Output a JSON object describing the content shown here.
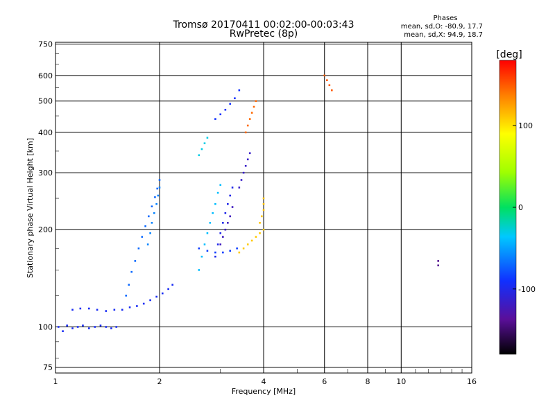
{
  "chart_data": {
    "type": "scatter",
    "title": "Tromsø 20170411 00:02:00-00:03:43",
    "subtitle": "RwPretec (8p)",
    "xlabel": "Frequency [MHz]",
    "ylabel": "Stationary phase Virtual Height [km]",
    "x_scale": "log",
    "y_scale": "log",
    "xlim": [
      1,
      16
    ],
    "ylim": [
      72,
      760
    ],
    "xticks": [
      1,
      2,
      4,
      6,
      8,
      10,
      16
    ],
    "xtick_labels": [
      "1",
      "2",
      "4",
      "6",
      "8",
      "10",
      "16"
    ],
    "yticks": [
      75,
      100,
      200,
      300,
      400,
      500,
      600,
      750
    ],
    "ytick_labels": [
      "75",
      "100",
      "200",
      "300",
      "400",
      "500",
      "600",
      "750"
    ],
    "grid": true,
    "colorbar": {
      "label": "[deg]",
      "range": [
        -180,
        180
      ],
      "ticks": [
        100,
        0,
        -100
      ],
      "tick_labels": [
        "100",
        "0",
        "-100"
      ],
      "colormap": "rainbow"
    },
    "phase_info": {
      "heading": "Phases",
      "line_o": "mean, sd,O: -80.9, 17.7",
      "line_x": "mean, sd,X:  94.9, 18.7"
    },
    "traces": [
      {
        "points": [
          [
            1.02,
            100
          ],
          [
            1.05,
            97
          ],
          [
            1.08,
            101
          ],
          [
            1.12,
            99
          ],
          [
            1.16,
            100
          ],
          [
            1.2,
            101
          ],
          [
            1.25,
            99
          ],
          [
            1.3,
            100
          ],
          [
            1.35,
            101
          ],
          [
            1.4,
            100
          ],
          [
            1.45,
            99
          ],
          [
            1.5,
            100
          ]
        ],
        "phase": -95
      },
      {
        "points": [
          [
            1.12,
            113
          ],
          [
            1.18,
            114
          ],
          [
            1.25,
            114
          ],
          [
            1.32,
            113
          ],
          [
            1.4,
            112
          ],
          [
            1.48,
            113
          ],
          [
            1.56,
            113
          ],
          [
            1.64,
            115
          ],
          [
            1.72,
            116
          ],
          [
            1.8,
            118
          ],
          [
            1.88,
            121
          ],
          [
            1.96,
            124
          ],
          [
            2.04,
            127
          ],
          [
            2.12,
            131
          ],
          [
            2.18,
            135
          ]
        ],
        "phase": -95
      },
      {
        "points": [
          [
            1.6,
            125
          ],
          [
            1.63,
            135
          ],
          [
            1.66,
            148
          ],
          [
            1.7,
            160
          ],
          [
            1.74,
            175
          ],
          [
            1.78,
            190
          ],
          [
            1.82,
            205
          ],
          [
            1.86,
            220
          ],
          [
            1.9,
            236
          ],
          [
            1.94,
            252
          ],
          [
            1.97,
            268
          ],
          [
            2.0,
            285
          ]
        ],
        "phase": -70
      },
      {
        "points": [
          [
            1.85,
            180
          ],
          [
            1.88,
            195
          ],
          [
            1.9,
            210
          ],
          [
            1.93,
            225
          ],
          [
            1.96,
            240
          ],
          [
            1.98,
            255
          ],
          [
            2.0,
            270
          ]
        ],
        "phase": -60
      },
      {
        "points": [
          [
            2.6,
            150
          ],
          [
            2.65,
            165
          ],
          [
            2.7,
            180
          ],
          [
            2.75,
            195
          ],
          [
            2.8,
            210
          ],
          [
            2.85,
            225
          ],
          [
            2.9,
            240
          ],
          [
            2.95,
            260
          ],
          [
            3.0,
            275
          ]
        ],
        "phase": -40
      },
      {
        "points": [
          [
            2.6,
            175
          ],
          [
            2.75,
            172
          ],
          [
            2.9,
            170
          ],
          [
            3.05,
            170
          ],
          [
            3.2,
            172
          ],
          [
            3.35,
            175
          ]
        ],
        "phase": -85
      },
      {
        "points": [
          [
            2.9,
            165
          ],
          [
            2.95,
            180
          ],
          [
            3.0,
            195
          ],
          [
            3.05,
            210
          ],
          [
            3.1,
            225
          ],
          [
            3.15,
            240
          ],
          [
            3.2,
            255
          ],
          [
            3.25,
            270
          ]
        ],
        "phase": -100
      },
      {
        "points": [
          [
            3.0,
            180
          ],
          [
            3.05,
            190
          ],
          [
            3.1,
            200
          ],
          [
            3.15,
            210
          ],
          [
            3.2,
            220
          ],
          [
            3.25,
            235
          ]
        ],
        "phase": -120
      },
      {
        "points": [
          [
            3.4,
            270
          ],
          [
            3.45,
            285
          ],
          [
            3.5,
            300
          ],
          [
            3.55,
            315
          ],
          [
            3.6,
            330
          ],
          [
            3.65,
            345
          ]
        ],
        "phase": -115
      },
      {
        "points": [
          [
            3.4,
            170
          ],
          [
            3.5,
            175
          ],
          [
            3.6,
            180
          ],
          [
            3.7,
            185
          ],
          [
            3.8,
            190
          ],
          [
            3.9,
            195
          ],
          [
            4.0,
            200
          ]
        ],
        "phase": 110
      },
      {
        "points": [
          [
            3.9,
            210
          ],
          [
            3.95,
            220
          ],
          [
            4.0,
            230
          ],
          [
            4.0,
            240
          ],
          [
            4.0,
            250
          ]
        ],
        "phase": 112
      },
      {
        "points": [
          [
            3.55,
            400
          ],
          [
            3.6,
            420
          ],
          [
            3.65,
            440
          ],
          [
            3.7,
            460
          ],
          [
            3.75,
            480
          ],
          [
            3.8,
            500
          ]
        ],
        "phase": 145
      },
      {
        "points": [
          [
            2.9,
            440
          ],
          [
            3.0,
            455
          ],
          [
            3.1,
            470
          ],
          [
            3.2,
            490
          ],
          [
            3.3,
            510
          ],
          [
            3.4,
            540
          ]
        ],
        "phase": -90
      },
      {
        "points": [
          [
            2.6,
            340
          ],
          [
            2.65,
            355
          ],
          [
            2.7,
            370
          ],
          [
            2.75,
            385
          ]
        ],
        "phase": -30
      },
      {
        "points": [
          [
            6.0,
            600
          ],
          [
            6.1,
            580
          ],
          [
            6.2,
            560
          ],
          [
            6.3,
            540
          ]
        ],
        "phase": 150
      },
      {
        "points": [
          [
            12.8,
            155
          ],
          [
            12.8,
            160
          ]
        ],
        "phase": -140
      }
    ]
  }
}
